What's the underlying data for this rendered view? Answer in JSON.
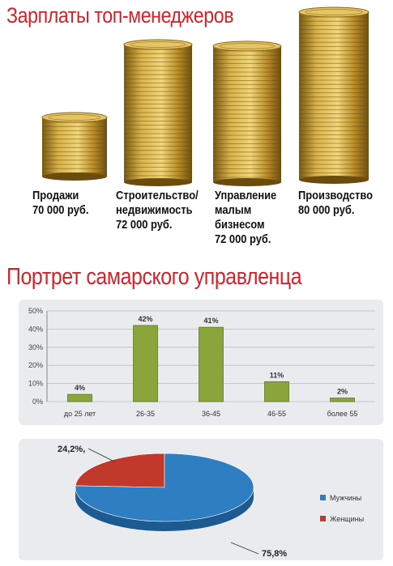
{
  "title_salaries": "Зарплаты топ-менеджеров",
  "title_portrait": "Портрет самарского управленца",
  "salary_items": [
    {
      "label": "Продажи\n70 000 руб."
    },
    {
      "label": "Строительство/\nнедвижимость\n72 000 руб."
    },
    {
      "label": "Управление\nмалым\nбизнесом\n72 000 руб."
    },
    {
      "label": "Производство\n80 000 руб."
    }
  ],
  "colors": {
    "title": "#d2232a",
    "coin": "#c9a23a",
    "bar": "#8aa63a",
    "men": "#2f7ec2",
    "women": "#c0392b"
  },
  "chart_data": [
    {
      "type": "bar",
      "title": "",
      "xlabel": "",
      "ylabel": "",
      "categories": [
        "до 25 лет",
        "26-35",
        "36-45",
        "46-55",
        "более 55"
      ],
      "values": [
        4,
        42,
        41,
        11,
        2
      ],
      "data_labels": [
        "4%",
        "42%",
        "41%",
        "11%",
        "2%"
      ],
      "ylim": [
        0,
        50
      ],
      "yticks": [
        "0%",
        "10%",
        "20%",
        "30%",
        "40%",
        "50%"
      ],
      "grid": true,
      "legend": "none"
    },
    {
      "type": "pie",
      "title": "",
      "categories": [
        "Мужчины",
        "Женщины"
      ],
      "values": [
        75.8,
        24.2
      ],
      "data_labels": [
        "75,8%",
        "24,2%,"
      ],
      "legend": "right"
    }
  ]
}
